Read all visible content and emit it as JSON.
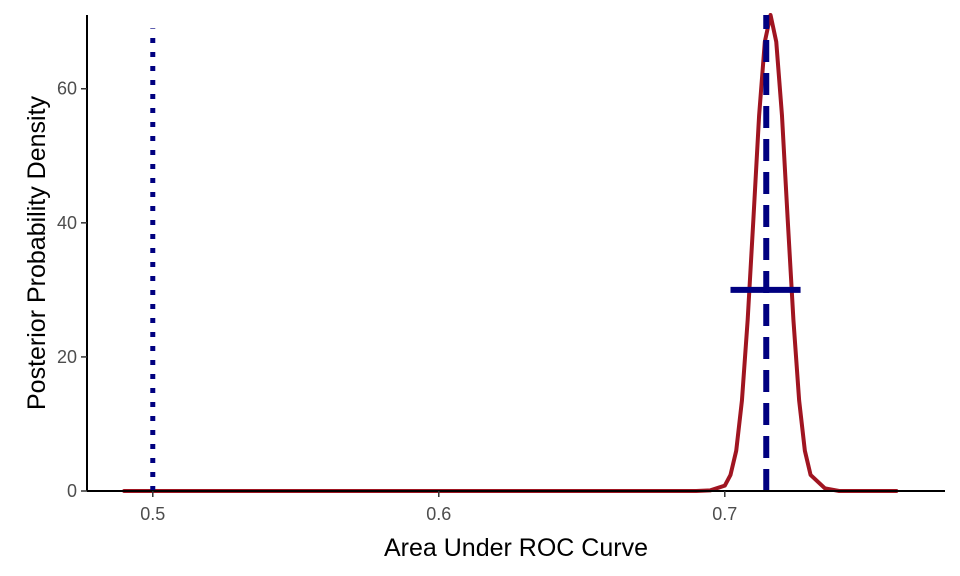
{
  "chart_data": {
    "type": "line",
    "title": "",
    "xlabel": "Area Under ROC Curve",
    "ylabel": "Posterior Probability Density",
    "xlim": [
      0.477,
      0.777
    ],
    "ylim": [
      0,
      71
    ],
    "x_ticks": [
      0.5,
      0.6,
      0.7
    ],
    "x_tick_labels": [
      "0.5",
      "0.6",
      "0.7"
    ],
    "y_ticks": [
      0,
      20,
      40,
      60
    ],
    "y_tick_labels": [
      "0",
      "20",
      "40",
      "60"
    ],
    "grid": false,
    "legend": "none",
    "series": [
      {
        "style": "solid",
        "color": "#a01521",
        "x": [
          0.49,
          0.69,
          0.695,
          0.7,
          0.702,
          0.704,
          0.706,
          0.708,
          0.71,
          0.712,
          0.714,
          0.716,
          0.718,
          0.72,
          0.722,
          0.724,
          0.726,
          0.728,
          0.73,
          0.735,
          0.74,
          0.76
        ],
        "y": [
          0,
          0,
          0.1,
          0.8,
          2.4,
          6.0,
          13.5,
          25.5,
          40.5,
          56.0,
          67.0,
          71.0,
          67.0,
          56.0,
          40.5,
          25.5,
          13.5,
          6.0,
          2.4,
          0.4,
          0,
          0
        ]
      }
    ],
    "reference_lines": [
      {
        "orientation": "vertical",
        "x": 0.5,
        "y_range": [
          0,
          69
        ],
        "style": "dotted",
        "color": "#000080"
      },
      {
        "orientation": "vertical",
        "x": 0.7145,
        "y_range": [
          0,
          71
        ],
        "style": "dashed",
        "color": "#000080"
      },
      {
        "orientation": "horizontal",
        "y": 30,
        "x_range": [
          0.702,
          0.7265
        ],
        "style": "solid",
        "color": "#000080"
      }
    ]
  }
}
